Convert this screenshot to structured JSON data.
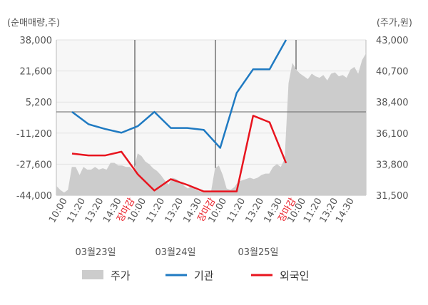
{
  "chart_data": {
    "type": "line",
    "left_unit_label": "(순매매량,주)",
    "right_unit_label": "(주가,원)",
    "left_axis": {
      "ticks": [
        "38,000",
        "21,600",
        "5,200",
        "-11,200",
        "-27,600",
        "-44,000"
      ],
      "range": [
        -44000,
        38000
      ]
    },
    "right_axis": {
      "ticks": [
        "43,000",
        "40,700",
        "38,400",
        "36,100",
        "33,800",
        "31,500"
      ],
      "range": [
        31500,
        43000
      ]
    },
    "x_ticks": [
      {
        "label": "10:00",
        "highlight": false
      },
      {
        "label": "11:20",
        "highlight": false
      },
      {
        "label": "13:20",
        "highlight": false
      },
      {
        "label": "14:30",
        "highlight": false
      },
      {
        "label": "장마감",
        "highlight": true
      },
      {
        "label": "10:00",
        "highlight": false
      },
      {
        "label": "11:20",
        "highlight": false
      },
      {
        "label": "13:20",
        "highlight": false
      },
      {
        "label": "14:30",
        "highlight": false
      },
      {
        "label": "장마감",
        "highlight": true
      },
      {
        "label": "10:00",
        "highlight": false
      },
      {
        "label": "11:20",
        "highlight": false
      },
      {
        "label": "13:20",
        "highlight": false
      },
      {
        "label": "14:30",
        "highlight": false
      },
      {
        "label": "장마감",
        "highlight": true
      },
      {
        "label": "10:00",
        "highlight": false
      },
      {
        "label": "11:20",
        "highlight": false
      },
      {
        "label": "13:20",
        "highlight": false
      },
      {
        "label": "14:30",
        "highlight": false
      }
    ],
    "date_labels": [
      "03월23일",
      "03월24일",
      "03월25일"
    ],
    "legend": [
      {
        "label": "주가",
        "kind": "area",
        "color": "#cccccc"
      },
      {
        "label": "기관",
        "kind": "line",
        "color": "#1f7ac2"
      },
      {
        "label": "외국인",
        "kind": "line",
        "color": "#e8141e"
      }
    ],
    "series": [
      {
        "name": "기관",
        "color": "#1f7ac2",
        "axis": "left",
        "values": [
          0,
          -6500,
          -9000,
          -11000,
          -7500,
          0,
          -8500,
          -8500,
          -9500,
          -19000,
          10000,
          22500,
          22500,
          38000
        ]
      },
      {
        "name": "외국인",
        "color": "#e8141e",
        "axis": "left",
        "values": [
          -22000,
          -23000,
          -23000,
          -21000,
          -33000,
          -41500,
          -35500,
          -38500,
          -42000,
          -42000,
          -42000,
          -2000,
          -5500,
          -27000
        ]
      }
    ],
    "price_series": {
      "name": "주가",
      "color": "#cccccc",
      "axis": "right",
      "values": [
        32200,
        31900,
        31700,
        31900,
        33600,
        33600,
        33000,
        33600,
        33400,
        33400,
        33600,
        33400,
        33500,
        33400,
        33900,
        33900,
        33700,
        33700,
        33600,
        33600,
        33300,
        34600,
        34400,
        34000,
        33800,
        33500,
        33300,
        33000,
        32600,
        32300,
        32800,
        32700,
        32500,
        32200,
        32000,
        32200,
        31900,
        31800,
        31700,
        31800,
        31800,
        33500,
        33700,
        33000,
        32000,
        31900,
        32100,
        32500,
        32600,
        32700,
        32800,
        32700,
        32800,
        33000,
        33100,
        33100,
        33600,
        33800,
        33600,
        34200,
        39800,
        41300,
        40800,
        40500,
        40300,
        40100,
        40500,
        40300,
        40200,
        40400,
        40000,
        40500,
        40600,
        40300,
        40400,
        40200,
        40800,
        41000,
        40500,
        41500,
        42000
      ]
    }
  }
}
